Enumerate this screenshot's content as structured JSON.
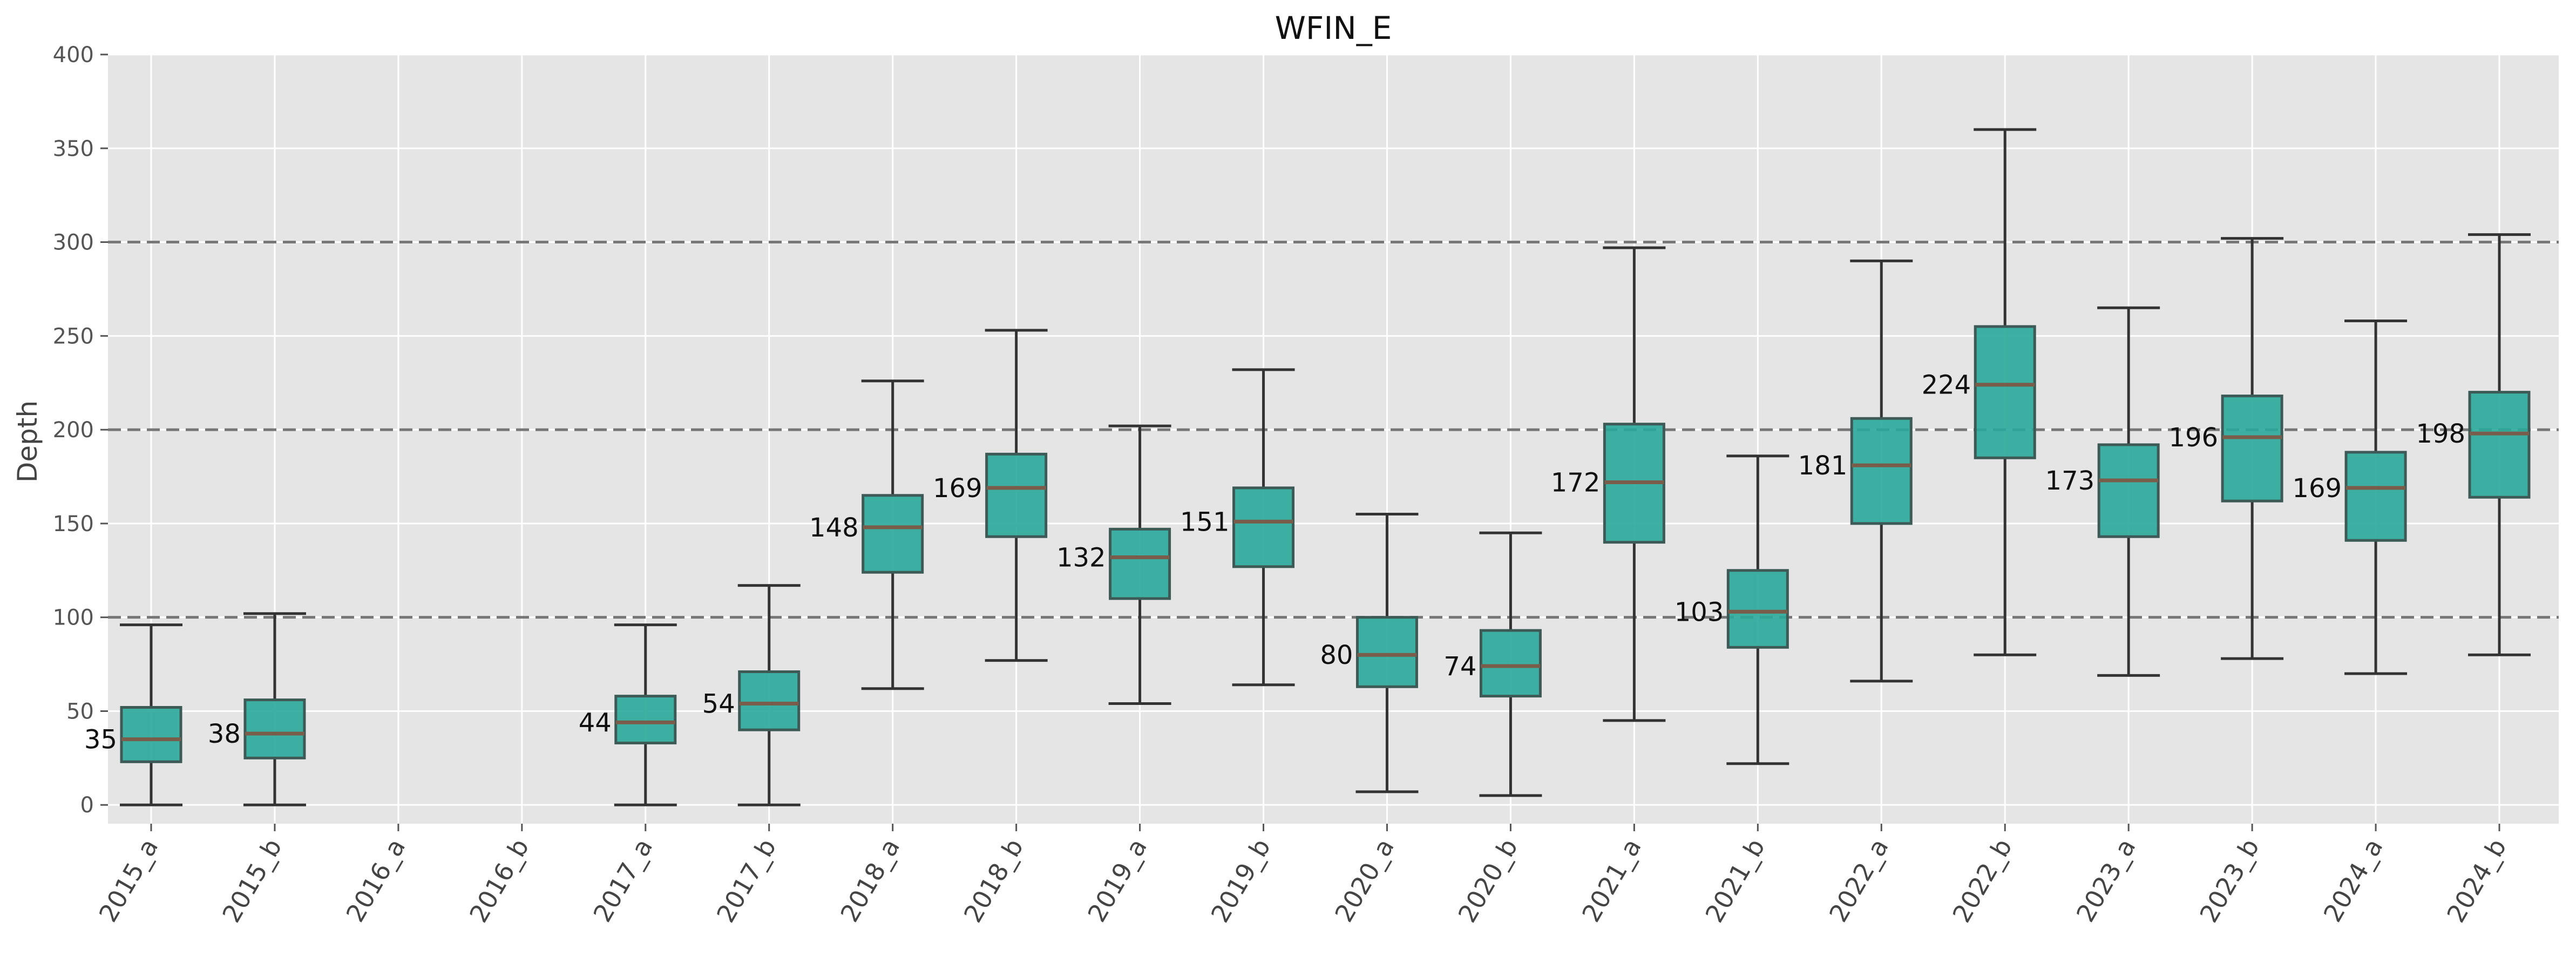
{
  "chart_data": {
    "type": "box",
    "title": "WFIN_E",
    "xlabel": "",
    "ylabel": "Depth",
    "ylim": [
      -10,
      400
    ],
    "yticks": [
      0,
      50,
      100,
      150,
      200,
      250,
      300,
      350,
      400
    ],
    "grid": true,
    "reference_lines": [
      100,
      200,
      300
    ],
    "colors": {
      "box_fill": "#2aa89a",
      "box_edge": "#3d5a57",
      "median": "#7a5c4a",
      "whisker": "#333333",
      "ref_line": "#777777",
      "plot_bg": "#e5e5e5",
      "grid": "#ffffff"
    },
    "categories": [
      "2015_a",
      "2015_b",
      "2016_a",
      "2016_b",
      "2017_a",
      "2017_b",
      "2018_a",
      "2018_b",
      "2019_a",
      "2019_b",
      "2020_a",
      "2020_b",
      "2021_a",
      "2021_b",
      "2022_a",
      "2022_b",
      "2023_a",
      "2023_b",
      "2024_a",
      "2024_b"
    ],
    "boxes": [
      {
        "category": "2015_a",
        "whislo": 0,
        "q1": 23,
        "median": 35,
        "q3": 52,
        "whishi": 96,
        "label": "35"
      },
      {
        "category": "2015_b",
        "whislo": 0,
        "q1": 25,
        "median": 38,
        "q3": 56,
        "whishi": 102,
        "label": "38"
      },
      {
        "category": "2016_a",
        "whislo": null,
        "q1": null,
        "median": null,
        "q3": null,
        "whishi": null,
        "label": ""
      },
      {
        "category": "2016_b",
        "whislo": null,
        "q1": null,
        "median": null,
        "q3": null,
        "whishi": null,
        "label": ""
      },
      {
        "category": "2017_a",
        "whislo": 0,
        "q1": 33,
        "median": 44,
        "q3": 58,
        "whishi": 96,
        "label": "44"
      },
      {
        "category": "2017_b",
        "whislo": 0,
        "q1": 40,
        "median": 54,
        "q3": 71,
        "whishi": 117,
        "label": "54"
      },
      {
        "category": "2018_a",
        "whislo": 62,
        "q1": 124,
        "median": 148,
        "q3": 165,
        "whishi": 226,
        "label": "148"
      },
      {
        "category": "2018_b",
        "whislo": 77,
        "q1": 143,
        "median": 169,
        "q3": 187,
        "whishi": 253,
        "label": "169"
      },
      {
        "category": "2019_a",
        "whislo": 54,
        "q1": 110,
        "median": 132,
        "q3": 147,
        "whishi": 202,
        "label": "132"
      },
      {
        "category": "2019_b",
        "whislo": 64,
        "q1": 127,
        "median": 151,
        "q3": 169,
        "whishi": 232,
        "label": "151"
      },
      {
        "category": "2020_a",
        "whislo": 7,
        "q1": 63,
        "median": 80,
        "q3": 100,
        "whishi": 155,
        "label": "80"
      },
      {
        "category": "2020_b",
        "whislo": 5,
        "q1": 58,
        "median": 74,
        "q3": 93,
        "whishi": 145,
        "label": "74"
      },
      {
        "category": "2021_a",
        "whislo": 45,
        "q1": 140,
        "median": 172,
        "q3": 203,
        "whishi": 297,
        "label": "172"
      },
      {
        "category": "2021_b",
        "whislo": 22,
        "q1": 84,
        "median": 103,
        "q3": 125,
        "whishi": 186,
        "label": "103"
      },
      {
        "category": "2022_a",
        "whislo": 66,
        "q1": 150,
        "median": 181,
        "q3": 206,
        "whishi": 290,
        "label": "181"
      },
      {
        "category": "2022_b",
        "whislo": 80,
        "q1": 185,
        "median": 224,
        "q3": 255,
        "whishi": 360,
        "label": "224"
      },
      {
        "category": "2023_a",
        "whislo": 69,
        "q1": 143,
        "median": 173,
        "q3": 192,
        "whishi": 265,
        "label": "173"
      },
      {
        "category": "2023_b",
        "whislo": 78,
        "q1": 162,
        "median": 196,
        "q3": 218,
        "whishi": 302,
        "label": "196"
      },
      {
        "category": "2024_a",
        "whislo": 70,
        "q1": 141,
        "median": 169,
        "q3": 188,
        "whishi": 258,
        "label": "169"
      },
      {
        "category": "2024_b",
        "whislo": 80,
        "q1": 164,
        "median": 198,
        "q3": 220,
        "whishi": 304,
        "label": "198"
      }
    ]
  }
}
